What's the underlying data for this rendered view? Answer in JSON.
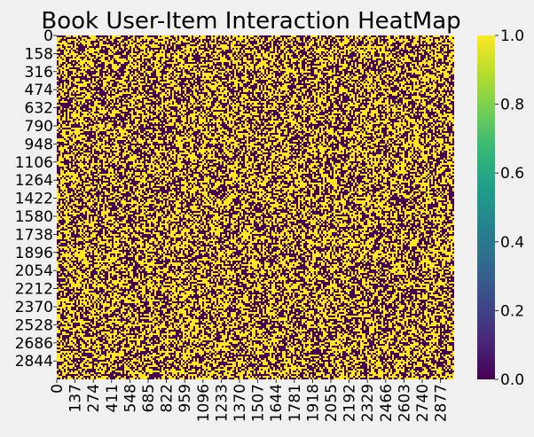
{
  "chart_data": {
    "type": "heatmap",
    "title": "Book User-Item Interaction HeatMap",
    "xlabel": "",
    "ylabel": "",
    "y_tick_labels": [
      "0",
      "158",
      "316",
      "474",
      "632",
      "790",
      "948",
      "1106",
      "1264",
      "1422",
      "1580",
      "1738",
      "1896",
      "2054",
      "2212",
      "2370",
      "2528",
      "2686",
      "2844"
    ],
    "x_tick_labels": [
      "0",
      "137",
      "274",
      "411",
      "548",
      "685",
      "822",
      "959",
      "1096",
      "1233",
      "1370",
      "1507",
      "1644",
      "1781",
      "1918",
      "2055",
      "2192",
      "2329",
      "2466",
      "2603",
      "2740",
      "2877"
    ],
    "value_range": [
      0.0,
      1.0
    ],
    "values_description": "binary user-item interaction matrix (0 or 1), roughly half of cells are 1",
    "fraction_ones": 0.5,
    "colormap": "viridis",
    "colors": {
      "zero": "#440154",
      "one": "#fde725",
      "background": "#f0f0f0"
    },
    "colorbar": {
      "ticks": [
        0.0,
        0.2,
        0.4,
        0.6,
        0.8,
        1.0
      ],
      "tick_labels": [
        "0.0",
        "0.2",
        "0.4",
        "0.6",
        "0.8",
        "1.0"
      ],
      "stops": [
        "#440154",
        "#482878",
        "#3e4989",
        "#31688e",
        "#26828e",
        "#1f9e89",
        "#35b779",
        "#6ece58",
        "#b5de2b",
        "#fde725"
      ]
    }
  }
}
